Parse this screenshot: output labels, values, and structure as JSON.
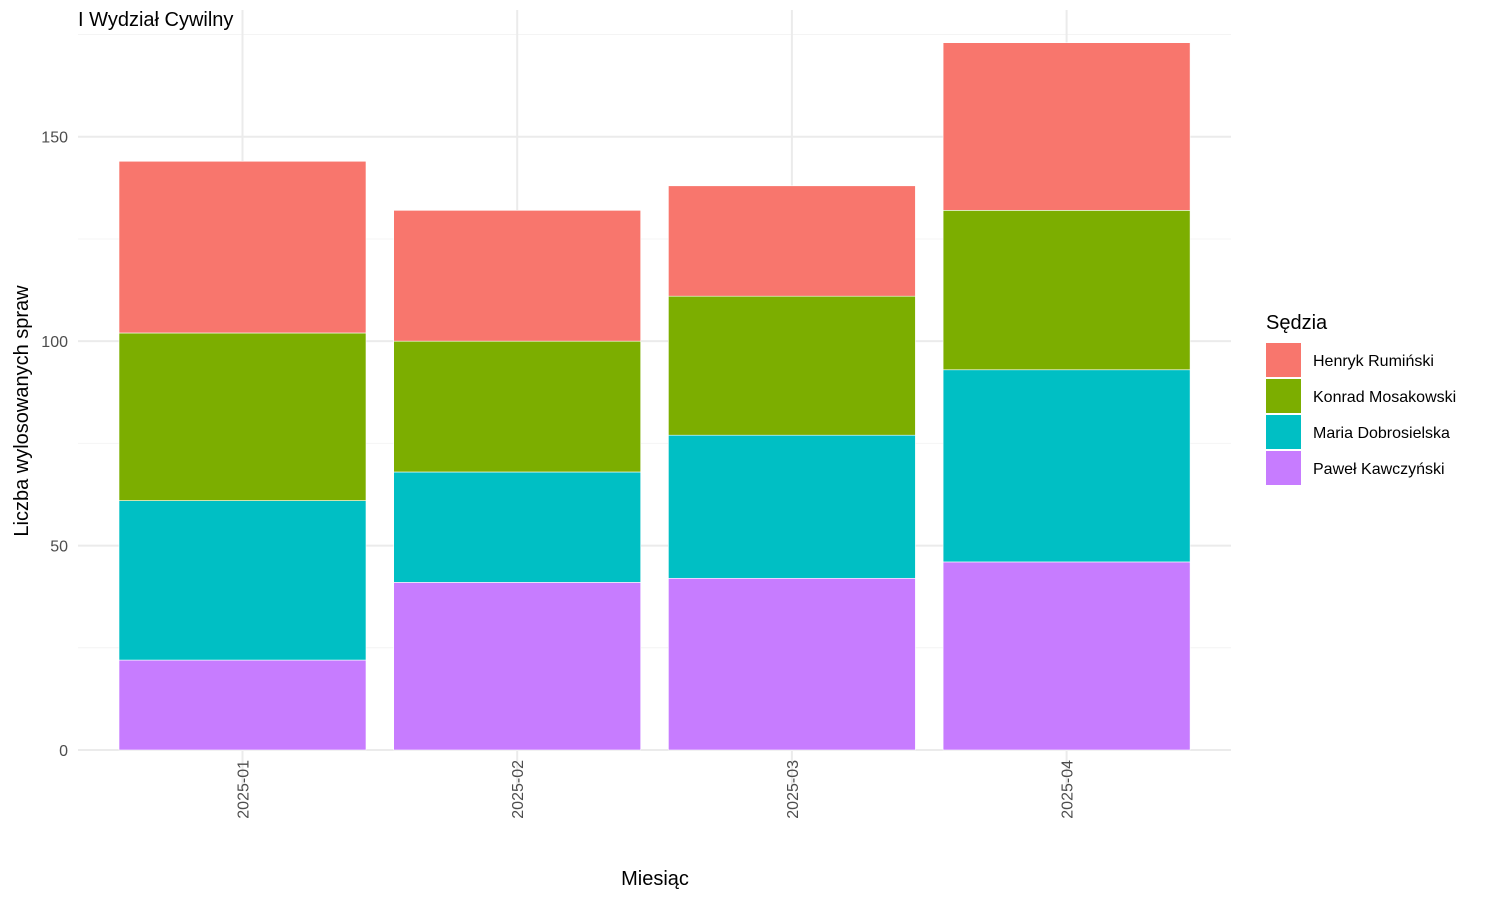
{
  "chart_data": {
    "type": "bar",
    "stacked": true,
    "title": "I Wydział Cywilny",
    "xlabel": "Miesiąc",
    "ylabel": "Liczba wylosowanych spraw",
    "categories": [
      "2025-01",
      "2025-02",
      "2025-03",
      "2025-04"
    ],
    "ylim": [
      0,
      181
    ],
    "yticks": [
      0,
      50,
      100,
      150
    ],
    "grid": true,
    "legend": {
      "title": "Sędzia",
      "position": "right"
    },
    "series": [
      {
        "name": "Paweł Kawczyński",
        "color": "#C77CFF",
        "values": [
          22,
          41,
          42,
          46
        ]
      },
      {
        "name": "Maria Dobrosielska",
        "color": "#00BFC4",
        "values": [
          39,
          27,
          35,
          47
        ]
      },
      {
        "name": "Konrad Mosakowski",
        "color": "#7CAE00",
        "values": [
          41,
          32,
          34,
          39
        ]
      },
      {
        "name": "Henryk Rumiński",
        "color": "#F8766D",
        "values": [
          42,
          32,
          27,
          41
        ]
      }
    ],
    "legend_order": [
      "Henryk Rumiński",
      "Konrad Mosakowski",
      "Maria Dobrosielska",
      "Paweł Kawczyński"
    ]
  }
}
